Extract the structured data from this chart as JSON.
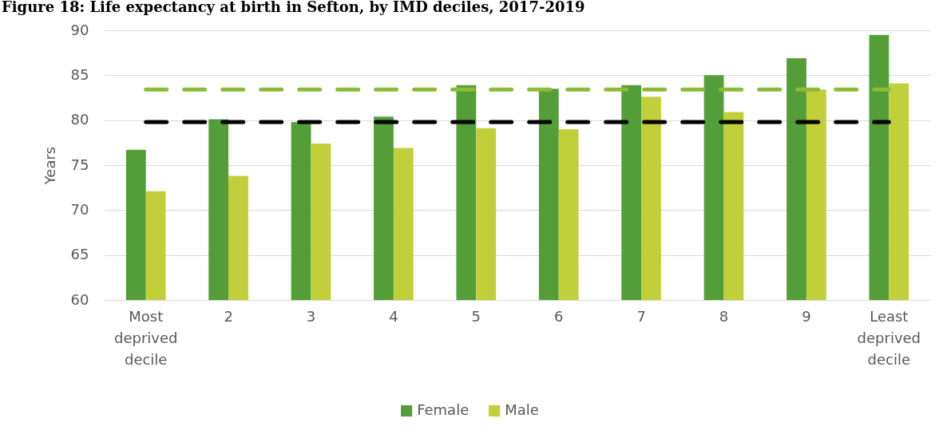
{
  "chart_data": {
    "type": "bar",
    "title": "Figure 18: Life expectancy at birth in Sefton, by IMD deciles, 2017-2019",
    "ylabel": "Years",
    "categories": [
      "Most deprived decile",
      "2",
      "3",
      "4",
      "5",
      "6",
      "7",
      "8",
      "9",
      "Least deprived decile"
    ],
    "series": [
      {
        "name": "Female",
        "color": "#549e39",
        "values": [
          76.7,
          80.1,
          79.8,
          80.4,
          83.9,
          83.5,
          83.9,
          85.0,
          86.9,
          89.5
        ]
      },
      {
        "name": "Male",
        "color": "#c1cf3a",
        "values": [
          72.1,
          73.8,
          77.4,
          76.9,
          79.1,
          79.0,
          82.6,
          80.9,
          83.4,
          84.1
        ]
      }
    ],
    "ylim": [
      60,
      90
    ],
    "yticks": [
      60,
      65,
      70,
      75,
      80,
      85,
      90
    ],
    "grid": "y",
    "legend": "bottom",
    "ref_lines": [
      {
        "axis": "y",
        "value": 83.4,
        "color": "#8cbb37",
        "line_style": "dashed"
      },
      {
        "axis": "y",
        "value": 79.8,
        "color": "#000000",
        "line_style": "dashed"
      }
    ]
  }
}
